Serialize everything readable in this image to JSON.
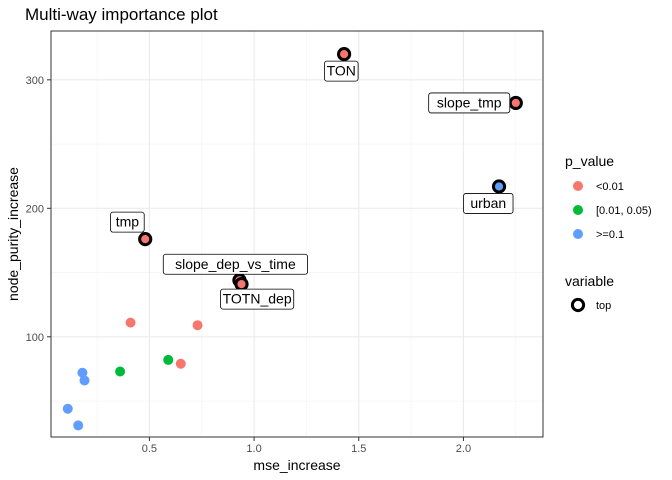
{
  "chart_data": {
    "type": "scatter",
    "title": "Multi-way importance plot",
    "xlabel": "mse_increase",
    "ylabel": "node_purity_increase",
    "xlim": [
      0.03,
      2.38
    ],
    "ylim": [
      22,
      338
    ],
    "xticks": [
      0.5,
      1.0,
      1.5,
      2.0
    ],
    "xtick_labels": [
      "0.5",
      "1.0",
      "1.5",
      "2.0"
    ],
    "yticks": [
      100,
      200,
      300
    ],
    "ytick_labels": [
      "100",
      "200",
      "300"
    ],
    "grid": true,
    "legend": {
      "placement": "right",
      "color_title": "p_value",
      "color_entries": [
        {
          "label": "<0.01",
          "color": "#F8766D"
        },
        {
          "label": "[0.01, 0.05)",
          "color": "#00BA38"
        },
        {
          "label": ">=0.1",
          "color": "#619CFF"
        }
      ],
      "shape_title": "variable",
      "shape_entries": [
        {
          "label": "top"
        }
      ]
    },
    "points": [
      {
        "x": 1.43,
        "y": 320,
        "p_value": "<0.01",
        "top": true,
        "label": "TON",
        "label_anchor": "below-left"
      },
      {
        "x": 2.25,
        "y": 282,
        "p_value": "<0.01",
        "top": true,
        "label": "slope_tmp",
        "label_anchor": "left"
      },
      {
        "x": 2.17,
        "y": 217,
        "p_value": ">=0.1",
        "top": true,
        "label": "urban",
        "label_anchor": "below-left"
      },
      {
        "x": 0.48,
        "y": 176,
        "p_value": "<0.01",
        "top": true,
        "label": "tmp",
        "label_anchor": "above-left"
      },
      {
        "x": 0.93,
        "y": 144,
        "p_value": "<0.01",
        "top": true,
        "label": "slope_dep_vs_time",
        "label_anchor": "above"
      },
      {
        "x": 0.94,
        "y": 141,
        "p_value": "<0.01",
        "top": true,
        "label": "TOTN_dep",
        "label_anchor": "below-right"
      },
      {
        "x": 0.41,
        "y": 111,
        "p_value": "<0.01",
        "top": false,
        "label": ""
      },
      {
        "x": 0.73,
        "y": 109,
        "p_value": "<0.01",
        "top": false,
        "label": ""
      },
      {
        "x": 0.65,
        "y": 79,
        "p_value": "<0.01",
        "top": false,
        "label": ""
      },
      {
        "x": 0.59,
        "y": 82,
        "p_value": "[0.01, 0.05)",
        "top": false,
        "label": ""
      },
      {
        "x": 0.36,
        "y": 73,
        "p_value": "[0.01, 0.05)",
        "top": false,
        "label": ""
      },
      {
        "x": 0.18,
        "y": 72,
        "p_value": ">=0.1",
        "top": false,
        "label": ""
      },
      {
        "x": 0.19,
        "y": 66,
        "p_value": ">=0.1",
        "top": false,
        "label": ""
      },
      {
        "x": 0.11,
        "y": 44,
        "p_value": ">=0.1",
        "top": false,
        "label": ""
      },
      {
        "x": 0.16,
        "y": 31,
        "p_value": ">=0.1",
        "top": false,
        "label": ""
      }
    ]
  }
}
